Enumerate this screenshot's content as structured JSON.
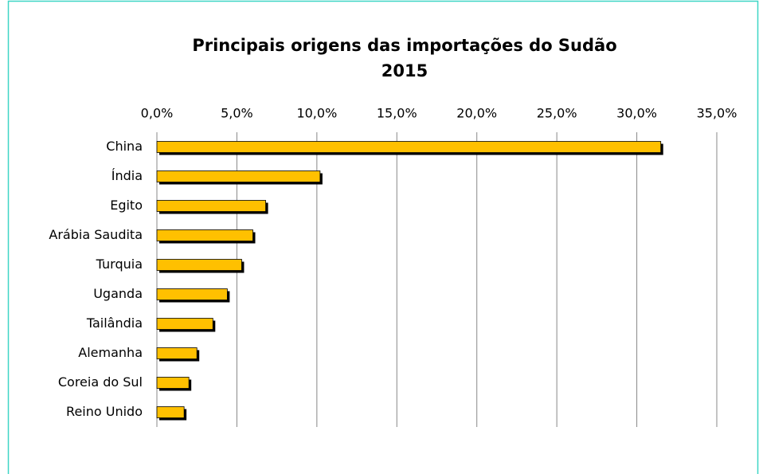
{
  "chart_data": {
    "type": "hbar",
    "title": "Principais origens das importações do Sudão",
    "subtitle": "2015",
    "categories": [
      "China",
      "Índia",
      "Egito",
      "Arábia Saudita",
      "Turquia",
      "Uganda",
      "Tailândia",
      "Alemanha",
      "Coreia do Sul",
      "Reino Unido"
    ],
    "values": [
      31.5,
      10.2,
      6.8,
      6.0,
      5.3,
      4.4,
      3.5,
      2.5,
      2.0,
      1.7
    ],
    "color": "#ffc000",
    "xlim": [
      0,
      35
    ],
    "xticks": [
      {
        "value": 0,
        "label": "0,0%"
      },
      {
        "value": 5,
        "label": "5,0%"
      },
      {
        "value": 10,
        "label": "10,0%"
      },
      {
        "value": 15,
        "label": "15,0%"
      },
      {
        "value": 20,
        "label": "20,0%"
      },
      {
        "value": 25,
        "label": "25,0%"
      },
      {
        "value": 30,
        "label": "30,0%"
      },
      {
        "value": 35,
        "label": "35,0%"
      }
    ],
    "grid": true
  }
}
